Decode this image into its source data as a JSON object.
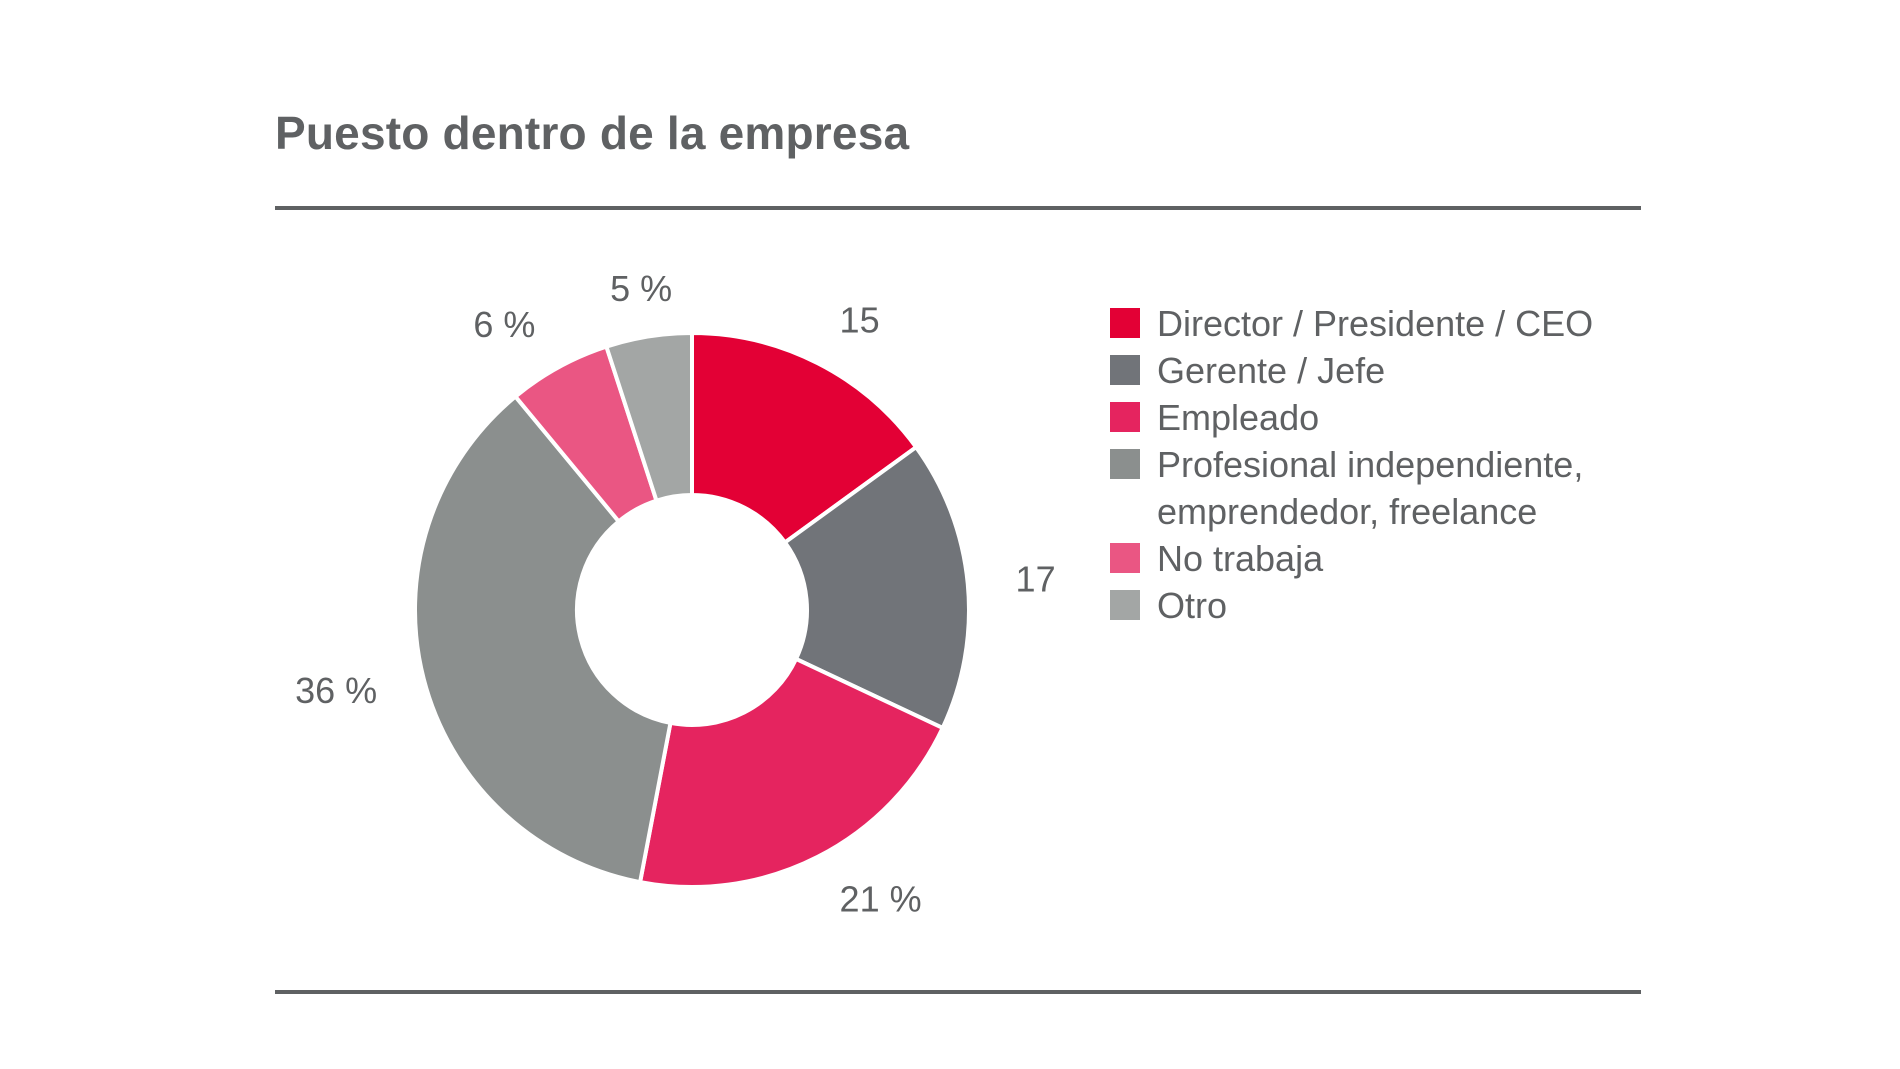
{
  "chart_data": {
    "type": "pie",
    "title": "Puesto dentro de la empresa",
    "donut": true,
    "labels": [
      "Director / Presidente / CEO",
      "Gerente / Jefe",
      "Empleado",
      "Profesional independiente,\nemprendedor, freelance",
      "No trabaja",
      "Otro"
    ],
    "values": [
      15,
      17,
      21,
      36,
      6,
      5
    ],
    "value_labels": [
      "15",
      "17",
      "21 %",
      "36 %",
      "6 %",
      "5 %"
    ],
    "colors": [
      "#e30035",
      "#717479",
      "#e5245f",
      "#8b8f8e",
      "#ea5683",
      "#a3a6a5"
    ],
    "legend_position": "right"
  }
}
